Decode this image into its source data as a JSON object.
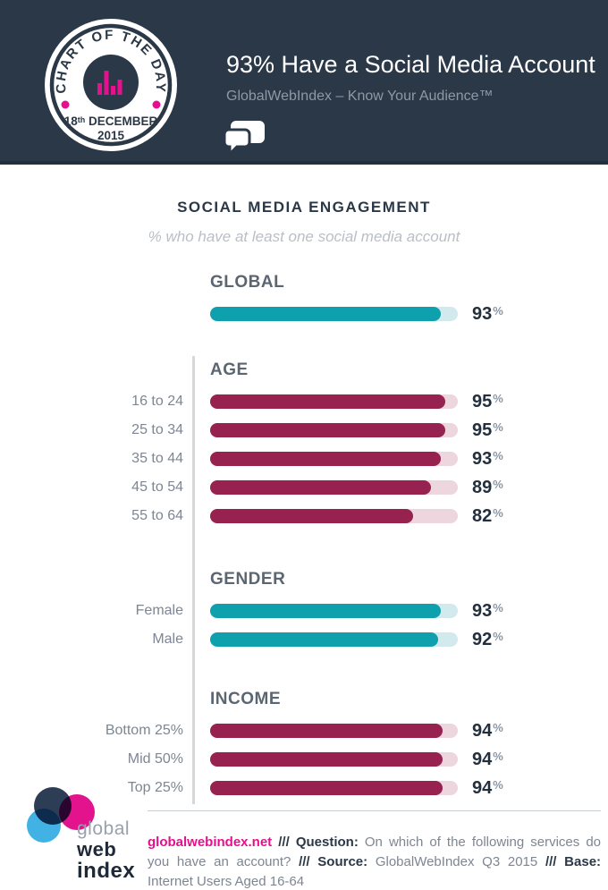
{
  "colors": {
    "header_bg": "#2b3847",
    "magenta": "#e60f8d",
    "teal": "#0fa0ae",
    "teal_track": "#d2eaee",
    "maroon": "#97214f",
    "maroon_track": "#edd6de",
    "navy_text": "#22303e",
    "label_gray": "#7d8692",
    "divider": "#d5d8db"
  },
  "badge": {
    "arc_text": "CHART OF THE DAY",
    "date_day": "18",
    "date_day_suffix": "th",
    "date_month": " DECEMBER",
    "date_year": "2015"
  },
  "header": {
    "title": "93% Have a Social Media Account",
    "subtitle": "GlobalWebIndex – Know Your Audience™"
  },
  "chart_data": {
    "type": "bar",
    "title": "SOCIAL MEDIA ENGAGEMENT",
    "subtitle": "% who have at least one social media account",
    "unit": "%",
    "xlim": [
      0,
      100
    ],
    "legend": false,
    "groups": [
      {
        "name": "GLOBAL",
        "palette": "teal",
        "rows": [
          {
            "label": "",
            "value": 93
          }
        ]
      },
      {
        "name": "AGE",
        "palette": "maroon",
        "rows": [
          {
            "label": "16 to 24",
            "value": 95
          },
          {
            "label": "25 to 34",
            "value": 95
          },
          {
            "label": "35 to 44",
            "value": 93
          },
          {
            "label": "45 to 54",
            "value": 89
          },
          {
            "label": "55 to 64",
            "value": 82
          }
        ]
      },
      {
        "name": "GENDER",
        "palette": "teal",
        "rows": [
          {
            "label": "Female",
            "value": 93
          },
          {
            "label": "Male",
            "value": 92
          }
        ]
      },
      {
        "name": "INCOME",
        "palette": "maroon",
        "rows": [
          {
            "label": "Bottom 25%",
            "value": 94
          },
          {
            "label": "Mid 50%",
            "value": 94
          },
          {
            "label": "Top 25%",
            "value": 94
          }
        ]
      }
    ]
  },
  "footer": {
    "logo": {
      "word1": "global",
      "word2": "web",
      "word3": "index"
    },
    "link": "globalwebindex.net",
    "separator": "///",
    "question_label": "Question:",
    "question_text": "On which of the following services do you have an account?",
    "source_label": "Source:",
    "source_text": "GlobalWebIndex Q3 2015",
    "base_label": "Base:",
    "base_text": "Internet Users Aged 16-64"
  }
}
